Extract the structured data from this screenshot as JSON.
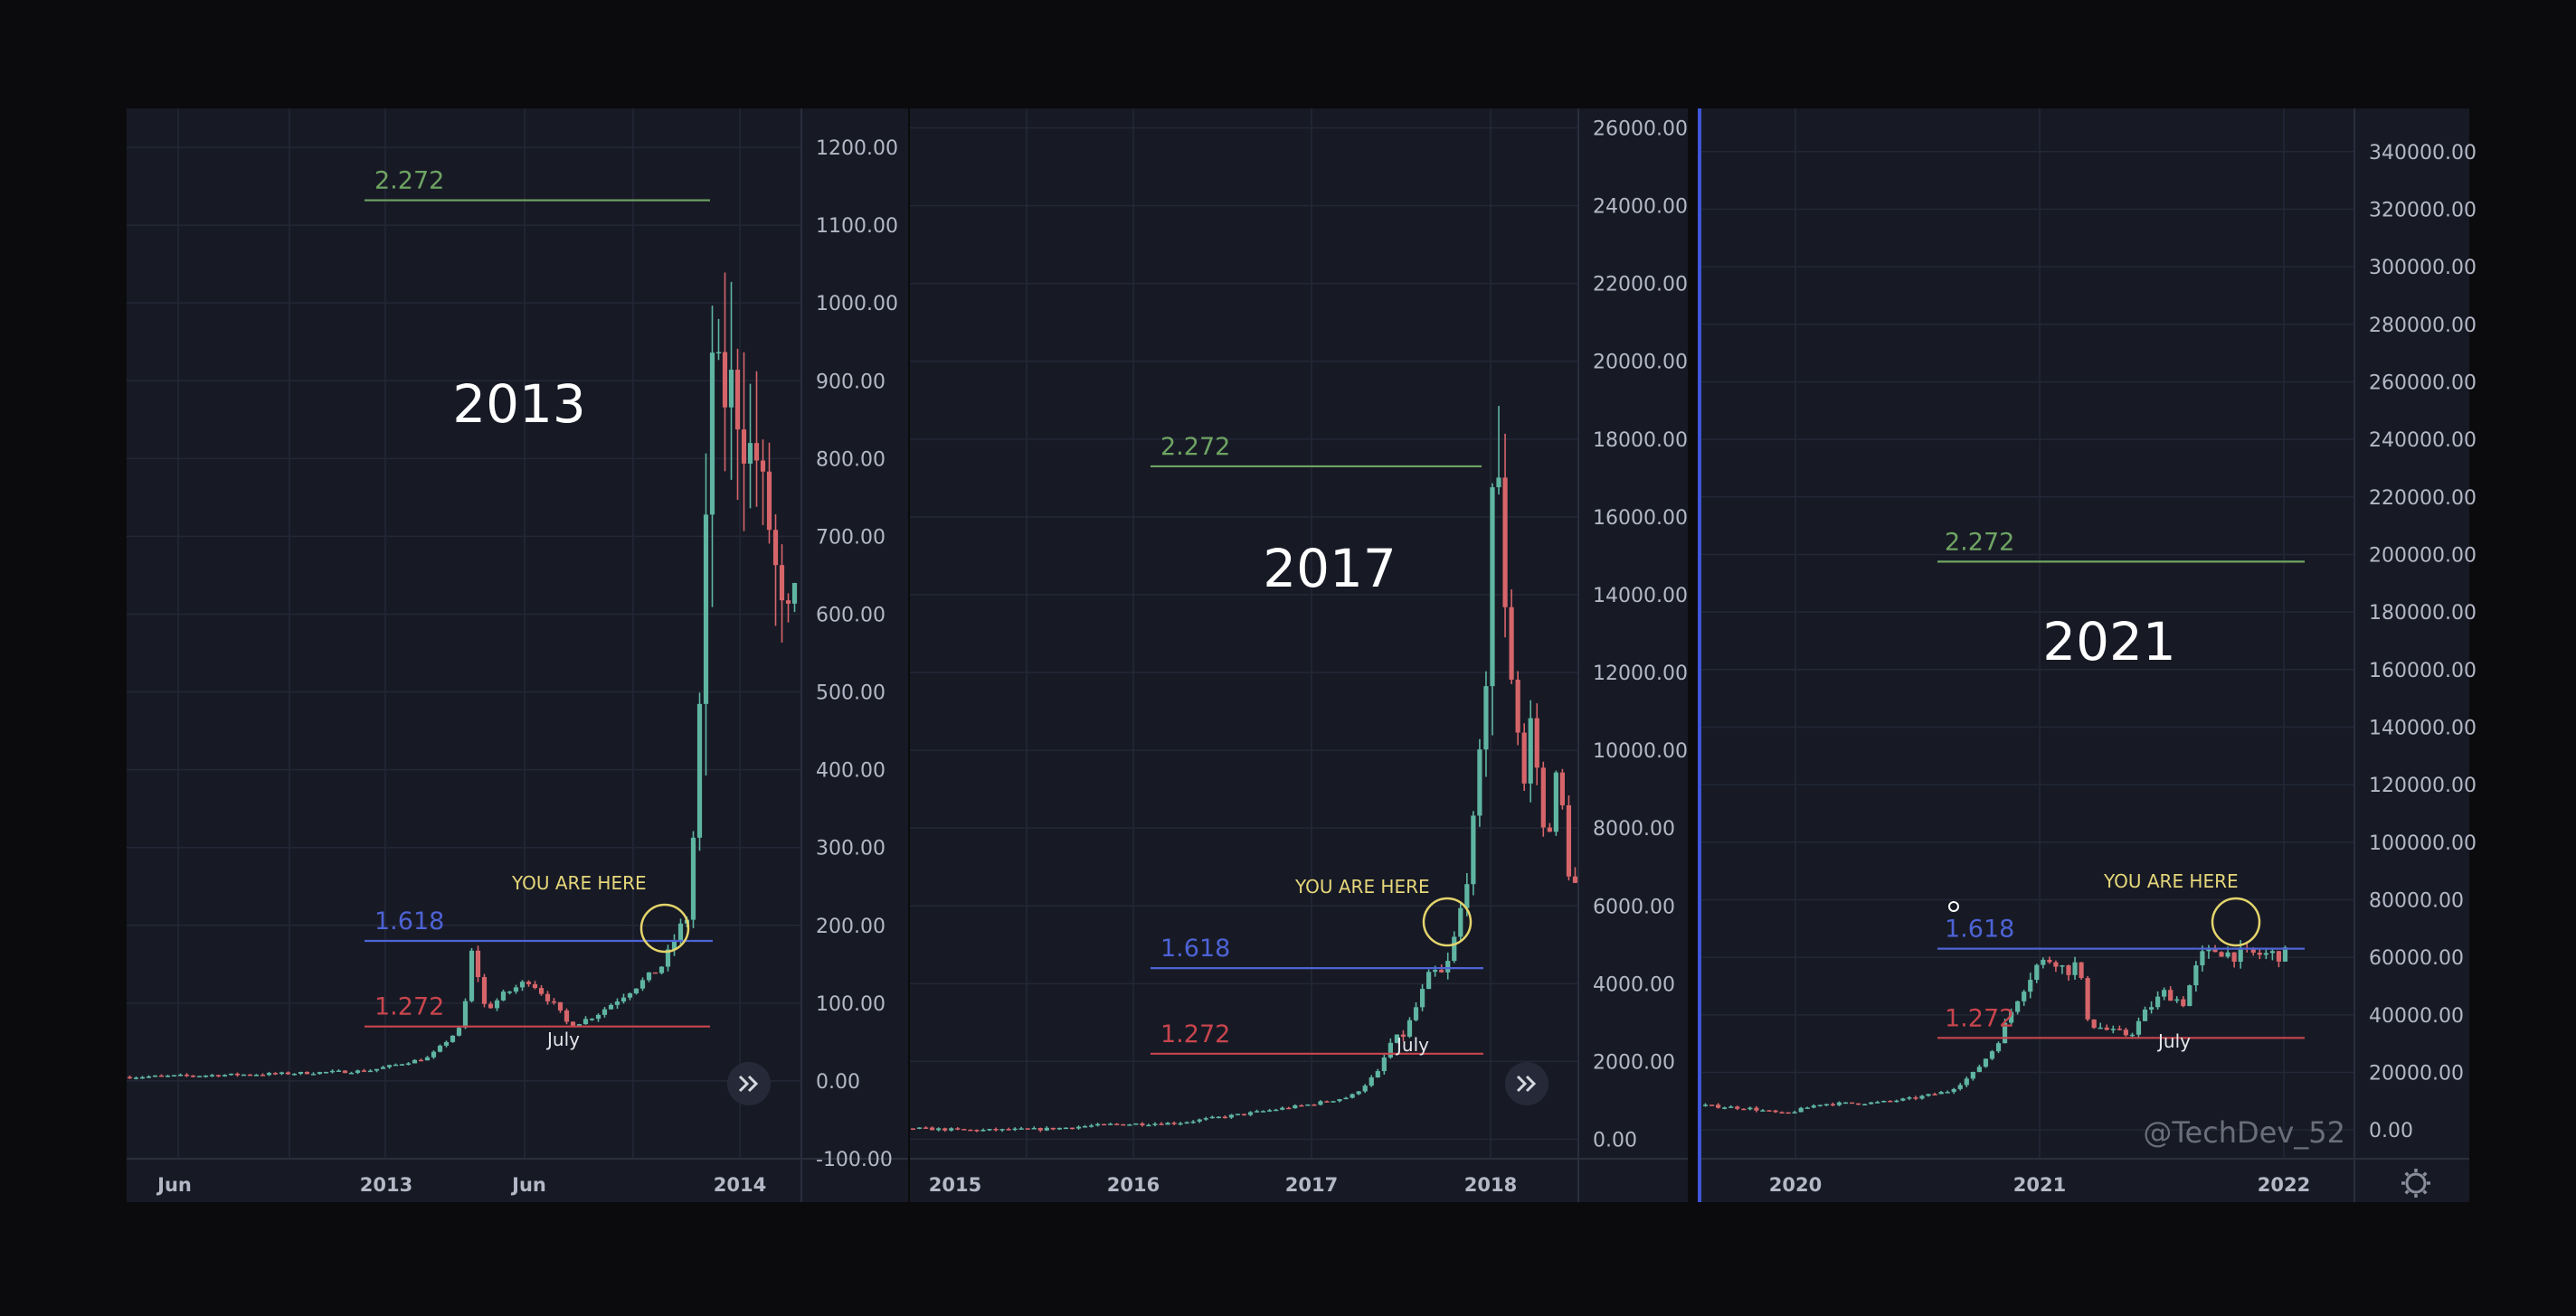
{
  "watermark": "@TechDev_52",
  "colors": {
    "up": "#5fb5a2",
    "down": "#d6656a",
    "fib_227": "#6fa463",
    "fib_1618": "#4e63d6",
    "fib_1272": "#c9454d",
    "marker": "#e4d46c"
  },
  "icons": {
    "scroll": "double-chevron-right-icon",
    "settings": "gear-icon"
  },
  "chart_data": [
    {
      "type": "candlestick",
      "title": "2013",
      "ylim": [
        -100,
        1250
      ],
      "y_ticks": [
        "1200.00",
        "1100.00",
        "1000.00",
        "900.00",
        "800.00",
        "700.00",
        "600.00",
        "500.00",
        "400.00",
        "300.00",
        "200.00",
        "100.00",
        "0.00",
        "-100.00"
      ],
      "y_tick_values": [
        1200,
        1100,
        1000,
        900,
        800,
        700,
        600,
        500,
        400,
        300,
        200,
        100,
        0,
        -100
      ],
      "x_ticks": [
        "Jun",
        "2013",
        "Jun",
        "2014"
      ],
      "x_tick_dates": [
        "2012-06",
        "2013-01",
        "2013-06",
        "2014-01"
      ],
      "fib_levels": [
        {
          "label": "2.272",
          "value": 1132,
          "color": "#6fa463"
        },
        {
          "label": "1.618",
          "value": 180,
          "color": "#4e63d6"
        },
        {
          "label": "1.272",
          "value": 70,
          "color": "#c9454d"
        }
      ],
      "annotations": {
        "you_are_here": "YOU ARE HERE",
        "month": "July"
      },
      "price_path": [
        [
          0,
          5
        ],
        [
          0.22,
          9
        ],
        [
          0.36,
          13
        ],
        [
          0.45,
          30
        ],
        [
          0.5,
          70
        ],
        [
          0.515,
          170
        ],
        [
          0.535,
          90
        ],
        [
          0.56,
          110
        ],
        [
          0.6,
          130
        ],
        [
          0.64,
          95
        ],
        [
          0.66,
          70
        ],
        [
          0.7,
          85
        ],
        [
          0.74,
          110
        ],
        [
          0.78,
          135
        ],
        [
          0.8,
          150
        ],
        [
          0.82,
          190
        ],
        [
          0.835,
          210
        ],
        [
          0.845,
          320
        ],
        [
          0.855,
          500
        ],
        [
          0.865,
          750
        ],
        [
          0.875,
          1000
        ],
        [
          0.885,
          860
        ],
        [
          0.9,
          900
        ],
        [
          0.92,
          820
        ],
        [
          0.94,
          800
        ],
        [
          0.96,
          700
        ],
        [
          0.98,
          580
        ],
        [
          1,
          630
        ]
      ]
    },
    {
      "type": "candlestick",
      "title": "2017",
      "ylim": [
        -500,
        26500
      ],
      "y_ticks": [
        "26000.00",
        "24000.00",
        "22000.00",
        "20000.00",
        "18000.00",
        "16000.00",
        "14000.00",
        "12000.00",
        "10000.00",
        "8000.00",
        "6000.00",
        "4000.00",
        "2000.00",
        "0.00"
      ],
      "y_tick_values": [
        26000,
        24000,
        22000,
        20000,
        18000,
        16000,
        14000,
        12000,
        10000,
        8000,
        6000,
        4000,
        2000,
        0
      ],
      "x_ticks": [
        "2015",
        "2016",
        "2017",
        "2018"
      ],
      "x_tick_dates": [
        "2015-01",
        "2016-01",
        "2017-01",
        "2018-01"
      ],
      "fib_levels": [
        {
          "label": "2.272",
          "value": 17300,
          "color": "#6fa463"
        },
        {
          "label": "1.618",
          "value": 4400,
          "color": "#4e63d6"
        },
        {
          "label": "1.272",
          "value": 2200,
          "color": "#c9454d"
        }
      ],
      "annotations": {
        "you_are_here": "YOU ARE HERE",
        "month": "July"
      },
      "price_path": [
        [
          0,
          280
        ],
        [
          0.1,
          230
        ],
        [
          0.2,
          260
        ],
        [
          0.3,
          380
        ],
        [
          0.4,
          420
        ],
        [
          0.5,
          650
        ],
        [
          0.6,
          900
        ],
        [
          0.66,
          1100
        ],
        [
          0.7,
          1700
        ],
        [
          0.72,
          2500
        ],
        [
          0.74,
          2700
        ],
        [
          0.76,
          3500
        ],
        [
          0.78,
          4300
        ],
        [
          0.8,
          4200
        ],
        [
          0.82,
          5500
        ],
        [
          0.84,
          7500
        ],
        [
          0.86,
          11000
        ],
        [
          0.87,
          16000
        ],
        [
          0.875,
          19000
        ],
        [
          0.885,
          15000
        ],
        [
          0.9,
          12000
        ],
        [
          0.92,
          9000
        ],
        [
          0.93,
          11000
        ],
        [
          0.95,
          7500
        ],
        [
          0.97,
          9500
        ],
        [
          0.985,
          7000
        ],
        [
          1,
          6300
        ]
      ]
    },
    {
      "type": "candlestick",
      "title": "2021",
      "ylim": [
        -10000,
        355000
      ],
      "y_ticks": [
        "340000.00",
        "320000.00",
        "300000.00",
        "280000.00",
        "260000.00",
        "240000.00",
        "220000.00",
        "200000.00",
        "180000.00",
        "160000.00",
        "140000.00",
        "120000.00",
        "100000.00",
        "80000.00",
        "60000.00",
        "40000.00",
        "20000.00",
        "0.00"
      ],
      "y_tick_values": [
        340000,
        320000,
        300000,
        280000,
        260000,
        240000,
        220000,
        200000,
        180000,
        160000,
        140000,
        120000,
        100000,
        80000,
        60000,
        40000,
        20000,
        0
      ],
      "x_ticks": [
        "2020",
        "2021",
        "2022"
      ],
      "x_tick_dates": [
        "2020-01",
        "2021-01",
        "2022-01"
      ],
      "fib_levels": [
        {
          "label": "2.272",
          "value": 197500,
          "color": "#6fa463"
        },
        {
          "label": "1.618",
          "value": 63000,
          "color": "#4e63d6"
        },
        {
          "label": "1.272",
          "value": 32000,
          "color": "#c9454d"
        }
      ],
      "annotations": {
        "you_are_here": "YOU ARE HERE",
        "month": "July"
      },
      "price_path": [
        [
          0,
          8500
        ],
        [
          0.08,
          7500
        ],
        [
          0.14,
          5500
        ],
        [
          0.2,
          9000
        ],
        [
          0.3,
          9500
        ],
        [
          0.36,
          11000
        ],
        [
          0.42,
          13500
        ],
        [
          0.46,
          19000
        ],
        [
          0.5,
          29000
        ],
        [
          0.54,
          47000
        ],
        [
          0.57,
          57000
        ],
        [
          0.6,
          60000
        ],
        [
          0.62,
          55000
        ],
        [
          0.64,
          58000
        ],
        [
          0.66,
          37000
        ],
        [
          0.7,
          34000
        ],
        [
          0.73,
          33000
        ],
        [
          0.76,
          42000
        ],
        [
          0.79,
          48000
        ],
        [
          0.82,
          44000
        ],
        [
          0.85,
          60000
        ],
        [
          0.88,
          63000
        ],
        [
          0.9,
          61000
        ]
      ]
    }
  ]
}
